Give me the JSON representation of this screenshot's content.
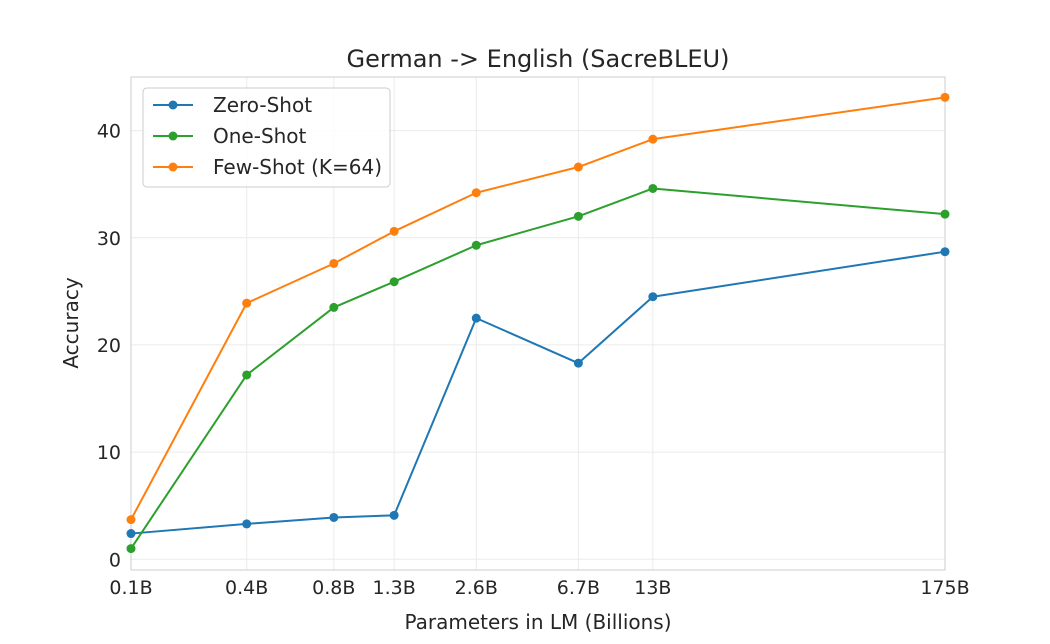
{
  "chart_data": {
    "type": "line",
    "title": "German -> English (SacreBLEU)",
    "xlabel": "Parameters in LM (Billions)",
    "ylabel": "Accuracy",
    "categories": [
      "0.1B",
      "0.4B",
      "0.8B",
      "1.3B",
      "2.6B",
      "6.7B",
      "13B",
      "175B"
    ],
    "x": [
      0.125,
      0.35,
      0.76,
      1.3,
      2.7,
      6.7,
      13,
      175
    ],
    "x_scale": "log",
    "xlim": [
      0.125,
      175
    ],
    "ylim": [
      -1,
      45
    ],
    "yticks": [
      0,
      10,
      20,
      30,
      40
    ],
    "grid": true,
    "legend_position": "top-left",
    "series": [
      {
        "name": "Zero-Shot",
        "color": "#1f77b4",
        "values": [
          2.4,
          3.3,
          3.9,
          4.1,
          22.5,
          18.3,
          24.5,
          28.7
        ]
      },
      {
        "name": "One-Shot",
        "color": "#2ca02c",
        "values": [
          1.0,
          17.2,
          23.5,
          25.9,
          29.3,
          32.0,
          34.6,
          32.2
        ]
      },
      {
        "name": "Few-Shot (K=64)",
        "color": "#ff7f0e",
        "values": [
          3.7,
          23.9,
          27.6,
          30.6,
          34.2,
          36.6,
          39.2,
          43.1
        ]
      }
    ]
  }
}
